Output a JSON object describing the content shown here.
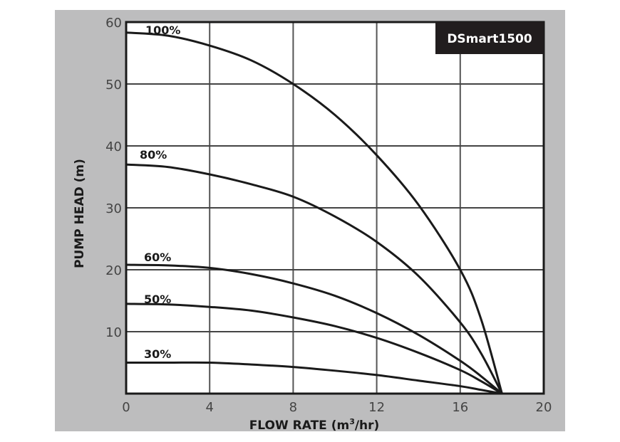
{
  "chart_data": {
    "type": "line",
    "title": "DSmart1500",
    "xlabel": "FLOW RATE (m³/hr)",
    "ylabel": "PUMP HEAD (m)",
    "xlim": [
      0,
      20
    ],
    "ylim": [
      0,
      60
    ],
    "x_ticks": [
      0,
      4,
      8,
      12,
      16,
      20
    ],
    "y_ticks": [
      10,
      20,
      30,
      40,
      50,
      60
    ],
    "grid": true,
    "legend": "inline labels at left of each curve",
    "x": [
      0,
      2,
      4,
      6,
      8,
      10,
      12,
      14,
      16,
      17,
      18
    ],
    "series": [
      {
        "name": "100%",
        "values": [
          58.3,
          57.8,
          56.2,
          53.8,
          50.0,
          45.0,
          38.5,
          30.5,
          20.0,
          12.0,
          0
        ]
      },
      {
        "name": "80%",
        "values": [
          37.0,
          36.6,
          35.4,
          33.8,
          31.8,
          28.6,
          24.5,
          19.0,
          11.5,
          6.5,
          0
        ]
      },
      {
        "name": "60%",
        "values": [
          20.8,
          20.7,
          20.3,
          19.3,
          17.8,
          15.8,
          13.0,
          9.5,
          5.3,
          2.8,
          0
        ]
      },
      {
        "name": "50%",
        "values": [
          14.5,
          14.4,
          14.0,
          13.4,
          12.3,
          10.9,
          9.0,
          6.6,
          3.8,
          2.0,
          0
        ]
      },
      {
        "name": "30%",
        "values": [
          5.0,
          5.0,
          5.0,
          4.7,
          4.3,
          3.7,
          3.0,
          2.1,
          1.2,
          0.6,
          0
        ]
      }
    ]
  },
  "labels": {
    "badge": "DSmart1500",
    "xlabel": "FLOW RATE (m",
    "xlabel_sup": "3",
    "xlabel_end": "/hr)",
    "ylabel": "PUMP HEAD (m)",
    "x_ticks": [
      "0",
      "4",
      "8",
      "12",
      "16",
      "20"
    ],
    "y_ticks": [
      "10",
      "20",
      "30",
      "40",
      "50",
      "60"
    ],
    "curves": [
      "100%",
      "80%",
      "60%",
      "50%",
      "30%"
    ]
  }
}
